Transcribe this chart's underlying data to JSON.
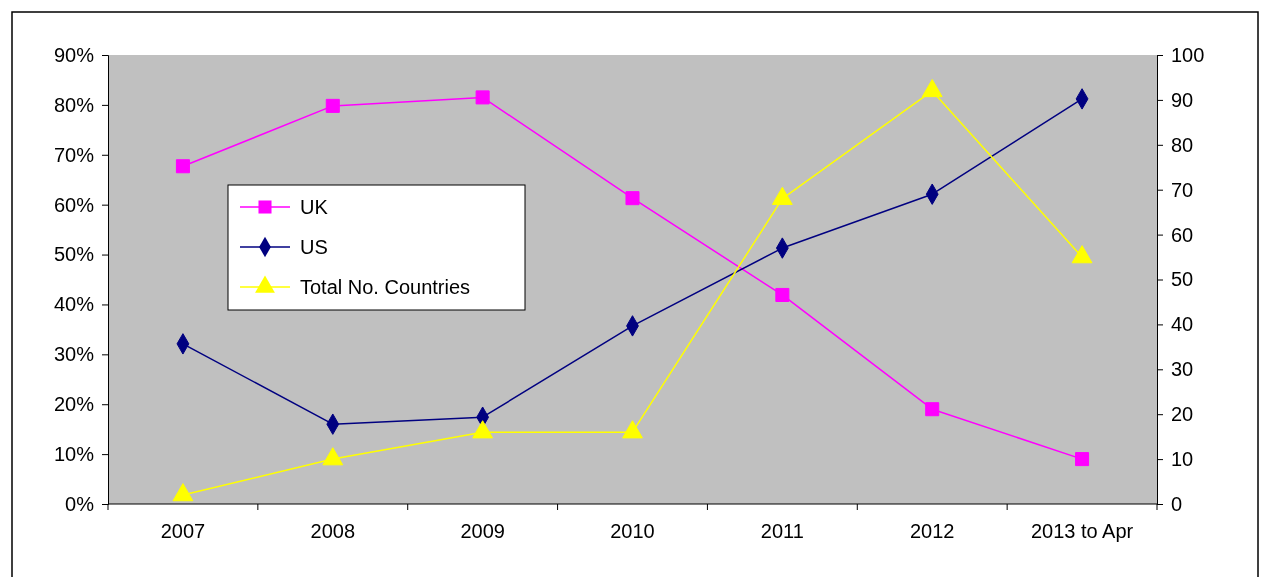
{
  "chart_data": {
    "type": "line",
    "categories": [
      "2007",
      "2008",
      "2009",
      "2010",
      "2011",
      "2012",
      "2013 to Apr"
    ],
    "series": [
      {
        "name": "UK",
        "color": "#ff00ff",
        "marker": "square",
        "values": [
          67.7,
          79.8,
          81.5,
          61.3,
          41.9,
          19.0,
          9.0
        ]
      },
      {
        "name": "US",
        "color": "#000080",
        "marker": "diamond",
        "values": [
          32.1,
          16.0,
          17.4,
          35.7,
          51.3,
          62.1,
          81.2
        ]
      },
      {
        "name": "Total No. Countries",
        "color": "#ffff00",
        "marker": "triangle",
        "axis": "y2",
        "values": [
          2,
          10,
          16,
          16,
          68,
          92,
          55
        ]
      }
    ],
    "ylim": [
      0,
      90
    ],
    "yticks": [
      {
        "value": 0,
        "label": "0%"
      },
      {
        "value": 10,
        "label": "10%"
      },
      {
        "value": 20,
        "label": "20%"
      },
      {
        "value": 30,
        "label": "30%"
      },
      {
        "value": 40,
        "label": "40%"
      },
      {
        "value": 50,
        "label": "50%"
      },
      {
        "value": 60,
        "label": "60%"
      },
      {
        "value": 70,
        "label": "70%"
      },
      {
        "value": 80,
        "label": "80%"
      },
      {
        "value": 90,
        "label": "90%"
      }
    ],
    "y2lim": [
      0,
      100
    ],
    "y2ticks": [
      0,
      10,
      20,
      30,
      40,
      50,
      60,
      70,
      80,
      90,
      100
    ],
    "legend": "left",
    "grid": false
  }
}
